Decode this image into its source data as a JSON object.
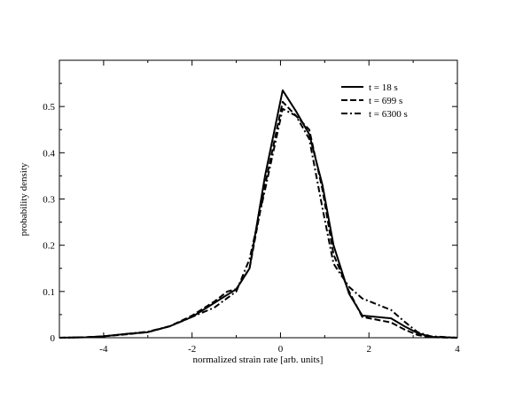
{
  "chart_data": {
    "type": "line",
    "title": "",
    "xlabel": "normalized strain rate [arb. units]",
    "ylabel": "probability density",
    "xlim": [
      -5,
      4
    ],
    "ylim": [
      0,
      0.6
    ],
    "xticks": [
      -4,
      -2,
      0,
      2,
      4
    ],
    "yticks": [
      0,
      0.1,
      0.2,
      0.3,
      0.4,
      0.5
    ],
    "ytick_labels": [
      "0",
      "0.1",
      "0.2",
      "0.3",
      "0.4",
      "0.5"
    ],
    "minor_xtick_step": 1,
    "minor_ytick_step": 0.05,
    "grid": false,
    "legend_position": "top-right",
    "series": [
      {
        "name": "t = 18 s",
        "style": "solid",
        "color": "#000000",
        "x": [
          -5,
          -4.4,
          -4,
          -3.5,
          -3,
          -2.5,
          -2,
          -1.5,
          -1,
          -0.7,
          -0.35,
          0.05,
          0.35,
          0.65,
          0.95,
          1.2,
          1.55,
          1.85,
          2.5,
          2.8,
          3.1,
          3.4,
          4
        ],
        "y": [
          0,
          0.001,
          0.003,
          0.008,
          0.012,
          0.025,
          0.045,
          0.075,
          0.105,
          0.15,
          0.35,
          0.535,
          0.49,
          0.44,
          0.33,
          0.2,
          0.095,
          0.048,
          0.042,
          0.025,
          0.01,
          0.002,
          0
        ]
      },
      {
        "name": "t = 699 s",
        "style": "dashed",
        "color": "#000000",
        "x": [
          -5,
          -4.4,
          -4,
          -3.5,
          -3,
          -2.5,
          -2,
          -1.5,
          -1.2,
          -1,
          -0.7,
          -0.35,
          0.05,
          0.35,
          0.65,
          0.95,
          1.2,
          1.55,
          1.85,
          2.5,
          2.8,
          3.1,
          3.4,
          4
        ],
        "y": [
          0,
          0.001,
          0.003,
          0.007,
          0.012,
          0.025,
          0.048,
          0.078,
          0.1,
          0.105,
          0.15,
          0.33,
          0.51,
          0.48,
          0.45,
          0.32,
          0.18,
          0.1,
          0.045,
          0.033,
          0.018,
          0.006,
          0.001,
          0
        ]
      },
      {
        "name": "t = 6300 s",
        "style": "dashdot",
        "color": "#000000",
        "x": [
          -5,
          -4.4,
          -4,
          -3.5,
          -3,
          -2.5,
          -2,
          -1.5,
          -1,
          -0.7,
          -0.35,
          0.05,
          0.35,
          0.65,
          0.95,
          1.2,
          1.55,
          1.85,
          2.5,
          2.8,
          3.1,
          3.4,
          4
        ],
        "y": [
          0,
          0.001,
          0.003,
          0.008,
          0.013,
          0.025,
          0.045,
          0.065,
          0.1,
          0.17,
          0.32,
          0.495,
          0.48,
          0.43,
          0.28,
          0.16,
          0.11,
          0.085,
          0.06,
          0.035,
          0.012,
          0.003,
          0
        ]
      }
    ]
  }
}
